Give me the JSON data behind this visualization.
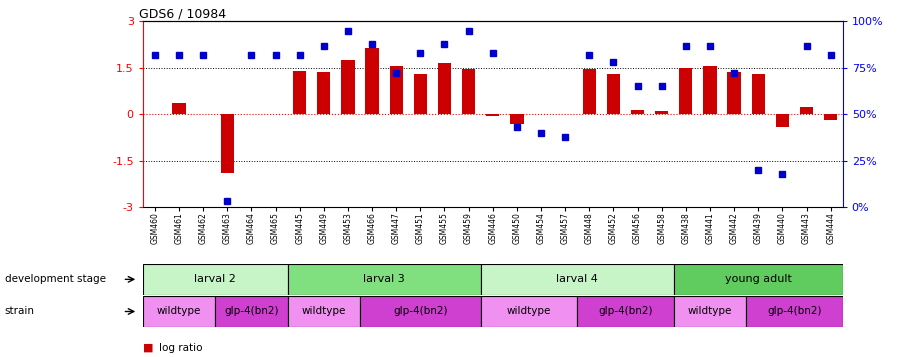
{
  "title": "GDS6 / 10984",
  "samples": [
    "GSM460",
    "GSM461",
    "GSM462",
    "GSM463",
    "GSM464",
    "GSM465",
    "GSM445",
    "GSM449",
    "GSM453",
    "GSM466",
    "GSM447",
    "GSM451",
    "GSM455",
    "GSM459",
    "GSM446",
    "GSM450",
    "GSM454",
    "GSM457",
    "GSM448",
    "GSM452",
    "GSM456",
    "GSM458",
    "GSM438",
    "GSM441",
    "GSM442",
    "GSM439",
    "GSM440",
    "GSM443",
    "GSM444"
  ],
  "log_ratio": [
    0.0,
    0.35,
    0.0,
    -1.9,
    0.0,
    0.0,
    1.4,
    1.35,
    1.75,
    2.15,
    1.55,
    1.3,
    1.65,
    1.45,
    -0.05,
    -0.3,
    0.0,
    0.0,
    1.45,
    1.3,
    0.15,
    0.1,
    1.5,
    1.55,
    1.35,
    1.3,
    -0.4,
    0.25,
    -0.2
  ],
  "percentile": [
    82,
    82,
    82,
    3,
    82,
    82,
    82,
    87,
    95,
    88,
    72,
    83,
    88,
    95,
    83,
    43,
    40,
    38,
    82,
    78,
    65,
    65,
    87,
    87,
    72,
    20,
    18,
    87,
    82
  ],
  "dev_stages": [
    {
      "label": "larval 2",
      "start": 0,
      "end": 6,
      "color": "#c8f5c8"
    },
    {
      "label": "larval 3",
      "start": 6,
      "end": 14,
      "color": "#80e080"
    },
    {
      "label": "larval 4",
      "start": 14,
      "end": 22,
      "color": "#c8f5c8"
    },
    {
      "label": "young adult",
      "start": 22,
      "end": 29,
      "color": "#60cc60"
    }
  ],
  "strains": [
    {
      "label": "wildtype",
      "start": 0,
      "end": 3,
      "color": "#f090f0"
    },
    {
      "label": "glp-4(bn2)",
      "start": 3,
      "end": 6,
      "color": "#d040d0"
    },
    {
      "label": "wildtype",
      "start": 6,
      "end": 9,
      "color": "#f090f0"
    },
    {
      "label": "glp-4(bn2)",
      "start": 9,
      "end": 14,
      "color": "#d040d0"
    },
    {
      "label": "wildtype",
      "start": 14,
      "end": 18,
      "color": "#f090f0"
    },
    {
      "label": "glp-4(bn2)",
      "start": 18,
      "end": 22,
      "color": "#d040d0"
    },
    {
      "label": "wildtype",
      "start": 22,
      "end": 25,
      "color": "#f090f0"
    },
    {
      "label": "glp-4(bn2)",
      "start": 25,
      "end": 29,
      "color": "#d040d0"
    }
  ],
  "bar_color": "#cc0000",
  "dot_color": "#0000cc",
  "ylim": [
    -3,
    3
  ],
  "y2lim": [
    0,
    100
  ],
  "yticks": [
    -3,
    -1.5,
    0,
    1.5,
    3
  ],
  "y2ticks": [
    0,
    25,
    50,
    75,
    100
  ]
}
